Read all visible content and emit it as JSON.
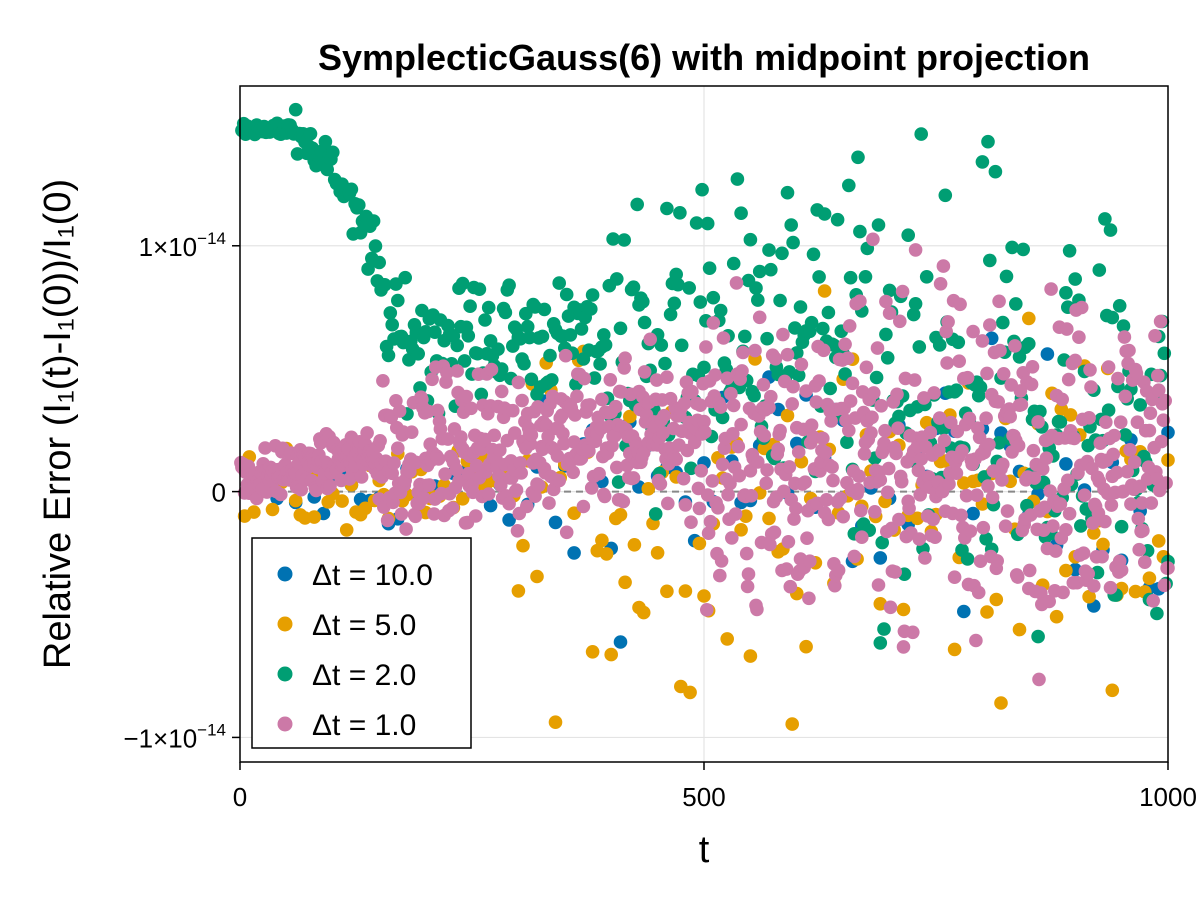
{
  "chart_data": {
    "type": "scatter",
    "title": "SymplecticGauss(6) with midpoint projection",
    "xlabel": "t",
    "ylabel": "Relative Error (I₁(t)-I₁(0))/I₁(0)",
    "xlim": [
      0,
      1000
    ],
    "ylim": [
      -1.1e-14,
      1.65e-14
    ],
    "x_ticks": [
      {
        "value": 0,
        "label": "0"
      },
      {
        "value": 500,
        "label": "500"
      },
      {
        "value": 1000,
        "label": "1000"
      }
    ],
    "y_ticks": [
      {
        "value": -1e-14,
        "label": "−1×10",
        "exp": "−14"
      },
      {
        "value": 0,
        "label": "0",
        "exp": ""
      },
      {
        "value": 1e-14,
        "label": "1×10",
        "exp": "−14"
      }
    ],
    "grid": true,
    "reference_line": {
      "y": 0,
      "style": "dashed",
      "color": "#888888"
    },
    "legend": {
      "placement": "bottom-left"
    },
    "series": [
      {
        "name": "Δt = 10.0",
        "color": "#0072B2",
        "dt": 10.0,
        "n_points": 100
      },
      {
        "name": "Δt = 5.0",
        "color": "#E69F00",
        "dt": 5.0,
        "n_points": 200
      },
      {
        "name": "Δt = 2.0",
        "color": "#009E73",
        "dt": 2.0,
        "n_points": 500
      },
      {
        "name": "Δt = 1.0",
        "color": "#CC79A7",
        "dt": 1.0,
        "n_points": 1000
      }
    ]
  }
}
